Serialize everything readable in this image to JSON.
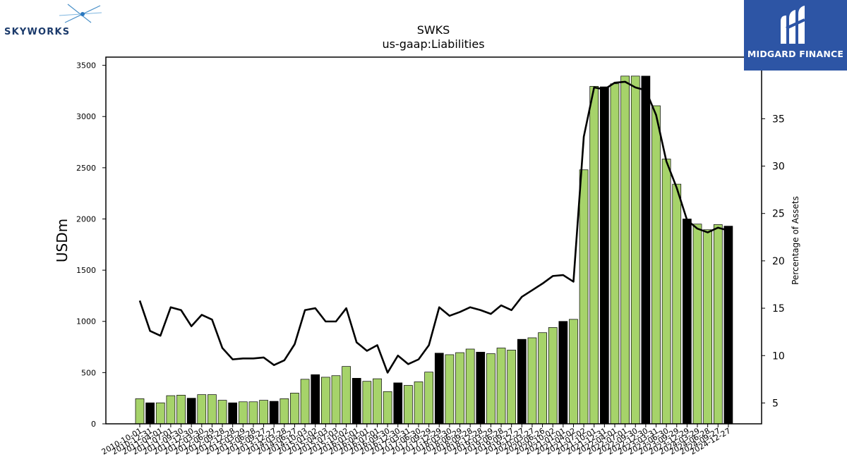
{
  "brand": {
    "left_logo_text": "SKYWORKS",
    "right_logo_text": "MIDGARD FINANCE"
  },
  "colors": {
    "bar_default": "#a6d36a",
    "bar_highlight": "#000000",
    "line": "#000000",
    "right_logo_bg": "#2d55a5"
  },
  "chart_data": {
    "type": "bar",
    "title": "SWKS",
    "subtitle": "us-gaap:Liabilities",
    "ylabel": "USDm",
    "y2label": "Percentage of Assets",
    "ylim": [
      0,
      3580
    ],
    "y2lim": [
      2.8,
      41.5
    ],
    "yticks": [
      0,
      500,
      1000,
      1500,
      2000,
      2500,
      3000,
      3500
    ],
    "y2ticks": [
      5,
      10,
      15,
      20,
      25,
      30,
      35
    ],
    "grid": false,
    "categories": [
      "2010-10-01",
      "2010-12-31",
      "2011-04-01",
      "2011-07-01",
      "2011-09-30",
      "2011-12-30",
      "2012-03-30",
      "2012-06-29",
      "2012-09-28",
      "2012-12-28",
      "2013-03-29",
      "2013-06-28",
      "2013-09-27",
      "2013-12-27",
      "2014-03-28",
      "2014-06-27",
      "2014-10-03",
      "2015-01-02",
      "2015-04-03",
      "2015-07-03",
      "2015-10-02",
      "2016-01-01",
      "2016-04-01",
      "2016-07-01",
      "2016-09-30",
      "2016-12-30",
      "2017-03-31",
      "2017-06-30",
      "2017-09-29",
      "2017-12-29",
      "2018-03-30",
      "2018-06-29",
      "2018-09-28",
      "2018-12-28",
      "2019-03-29",
      "2019-06-28",
      "2019-09-27",
      "2019-12-27",
      "2020-03-27",
      "2020-06-26",
      "2020-10-02",
      "2021-01-01",
      "2021-04-02",
      "2021-07-02",
      "2021-10-01",
      "2021-12-31",
      "2022-04-01",
      "2022-07-01",
      "2022-09-30",
      "2022-12-30",
      "2023-03-31",
      "2023-06-30",
      "2023-09-29",
      "2023-12-29",
      "2024-03-29",
      "2024-06-28",
      "2024-09-27",
      "2024-12-27"
    ],
    "values": [
      245,
      205,
      205,
      275,
      280,
      250,
      285,
      285,
      230,
      205,
      215,
      215,
      230,
      220,
      245,
      300,
      435,
      480,
      455,
      470,
      560,
      445,
      415,
      440,
      315,
      400,
      375,
      410,
      505,
      690,
      675,
      695,
      730,
      700,
      685,
      740,
      720,
      825,
      840,
      890,
      940,
      1000,
      1020,
      2480,
      3295,
      3290,
      3320,
      3395,
      3395,
      3395,
      3105,
      2585,
      2340,
      2000,
      1950,
      1895,
      1945,
      1930
    ],
    "highlight": [
      false,
      true,
      false,
      false,
      false,
      true,
      false,
      false,
      false,
      true,
      false,
      false,
      false,
      true,
      false,
      false,
      false,
      true,
      false,
      false,
      false,
      true,
      false,
      false,
      false,
      true,
      false,
      false,
      false,
      true,
      false,
      false,
      false,
      true,
      false,
      false,
      false,
      true,
      false,
      false,
      false,
      true,
      false,
      false,
      false,
      true,
      false,
      false,
      false,
      true,
      false,
      false,
      false,
      true,
      false,
      false,
      false,
      true
    ],
    "series": [
      {
        "values": [
          15.8,
          12.6,
          12.1,
          15.1,
          14.8,
          13.1,
          14.3,
          13.8,
          10.8,
          9.6,
          9.7,
          9.7,
          9.8,
          9.0,
          9.5,
          11.2,
          14.8,
          15.0,
          13.6,
          13.6,
          15.0,
          11.4,
          10.5,
          11.1,
          8.2,
          10.0,
          9.1,
          9.6,
          11.1,
          15.1,
          14.2,
          14.6,
          15.1,
          14.8,
          14.4,
          15.3,
          14.8,
          16.2,
          16.9,
          17.6,
          18.4,
          18.5,
          17.8,
          33.1,
          38.3,
          38.1,
          38.8,
          38.9,
          38.3,
          38.0,
          35.4,
          30.5,
          27.7,
          24.3,
          23.4,
          23.0,
          23.5,
          23.2
        ]
      }
    ]
  }
}
